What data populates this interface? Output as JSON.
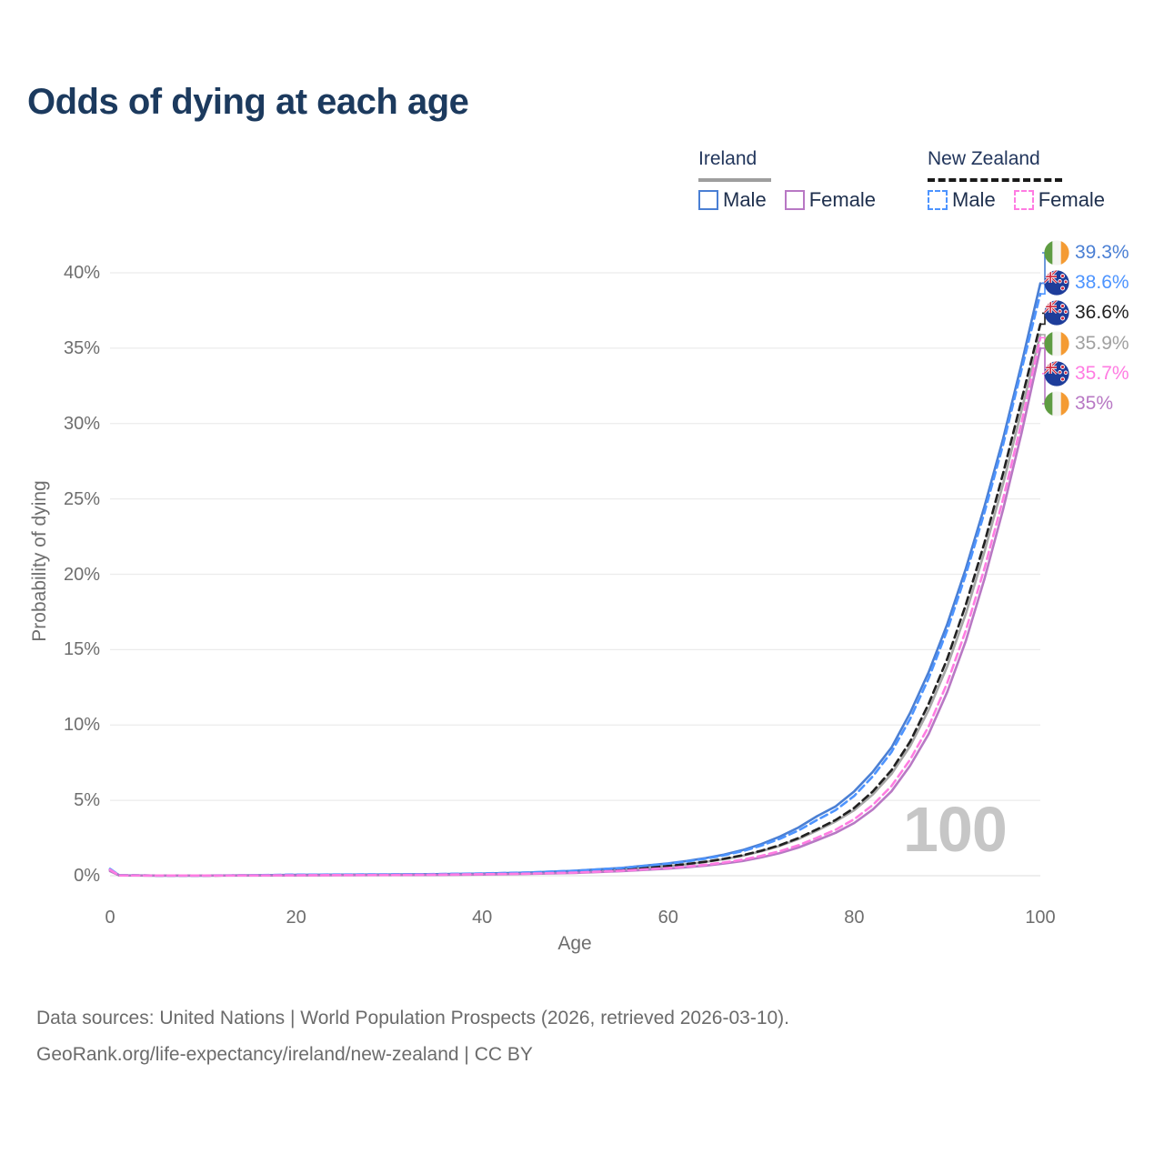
{
  "title": "Odds of dying at each age",
  "watermark": "100",
  "footer": {
    "line1": "Data sources: United Nations | World Population Prospects (2026, retrieved 2026-03-10).",
    "line2": "GeoRank.org/life-expectancy/ireland/new-zealand | CC BY"
  },
  "colors": {
    "title": "#1c3a5e",
    "axis_text": "#6e6e6e",
    "gridline": "#ececec",
    "watermark": "#c6c6c6",
    "ireland_male": "#4a7fd4",
    "ireland_female": "#b878c4",
    "ireland_all": "#a6a6a6",
    "new_zealand_male": "#4d94ff",
    "new_zealand_female": "#ff7ce2",
    "new_zealand_all": "#212121"
  },
  "legend": {
    "groups": [
      {
        "country": "Ireland",
        "slug": "ireland",
        "underline_style": "solid",
        "underline_color": "#9e9e9e",
        "underline_width": 80,
        "items": [
          {
            "label": "Male",
            "color": "#4a7fd4",
            "dashed": false
          },
          {
            "label": "Female",
            "color": "#b878c4",
            "dashed": false
          }
        ]
      },
      {
        "country": "New Zealand",
        "slug": "new-zealand",
        "underline_style": "dashed",
        "underline_color": "#1a1a1a",
        "underline_width": 148,
        "items": [
          {
            "label": "Male",
            "color": "#4d94ff",
            "dashed": true
          },
          {
            "label": "Female",
            "color": "#ff7ce2",
            "dashed": true
          }
        ]
      }
    ]
  },
  "chart_data": {
    "type": "line",
    "title": "Odds of dying at each age",
    "xlabel": "Age",
    "ylabel": "Probability of dying",
    "xlim": [
      0,
      100
    ],
    "ylim_percent": [
      0,
      40
    ],
    "grid": true,
    "legend_position": "top-right",
    "x_ticks": [
      {
        "value": 0,
        "label": "0"
      },
      {
        "value": 20,
        "label": "20"
      },
      {
        "value": 40,
        "label": "40"
      },
      {
        "value": 60,
        "label": "60"
      },
      {
        "value": 80,
        "label": "80"
      },
      {
        "value": 100,
        "label": "100"
      }
    ],
    "y_ticks": [
      {
        "value": 0,
        "label": "0%"
      },
      {
        "value": 5,
        "label": "5%"
      },
      {
        "value": 10,
        "label": "10%"
      },
      {
        "value": 15,
        "label": "15%"
      },
      {
        "value": 20,
        "label": "20%"
      },
      {
        "value": 25,
        "label": "25%"
      },
      {
        "value": 30,
        "label": "30%"
      },
      {
        "value": 35,
        "label": "35%"
      },
      {
        "value": 40,
        "label": "40%"
      }
    ],
    "ages": [
      0,
      1,
      5,
      10,
      15,
      20,
      25,
      30,
      35,
      40,
      45,
      50,
      55,
      60,
      62,
      64,
      66,
      68,
      70,
      72,
      74,
      76,
      78,
      80,
      82,
      84,
      86,
      88,
      90,
      92,
      94,
      96,
      98,
      100
    ],
    "series": [
      {
        "id": "ireland-all",
        "name": "Ireland",
        "flag": "ireland",
        "color": "#a6a6a6",
        "dashed": false,
        "end_label": "35.9%",
        "end_label_color": "#a0a0a0",
        "values_percent": [
          0.35,
          0.02,
          0.01,
          0.01,
          0.02,
          0.04,
          0.05,
          0.06,
          0.08,
          0.11,
          0.17,
          0.26,
          0.41,
          0.64,
          0.76,
          0.91,
          1.09,
          1.32,
          1.62,
          1.98,
          2.43,
          3.0,
          3.6,
          4.35,
          5.4,
          6.75,
          8.6,
          11.0,
          13.9,
          17.4,
          21.5,
          26.0,
          30.9,
          35.9
        ]
      },
      {
        "id": "new-zealand-all",
        "name": "New Zealand",
        "flag": "new-zealand",
        "color": "#212121",
        "dashed": true,
        "end_label": "36.6%",
        "end_label_color": "#212121",
        "values_percent": [
          0.4,
          0.03,
          0.01,
          0.01,
          0.02,
          0.05,
          0.06,
          0.07,
          0.09,
          0.12,
          0.18,
          0.27,
          0.42,
          0.65,
          0.78,
          0.93,
          1.12,
          1.36,
          1.66,
          2.03,
          2.5,
          3.08,
          3.7,
          4.5,
          5.6,
          7.0,
          8.9,
          11.4,
          14.4,
          18.0,
          22.1,
          26.7,
          31.6,
          36.6
        ]
      },
      {
        "id": "ireland-male",
        "name": "Ireland Male",
        "flag": "ireland",
        "color": "#4a7fd4",
        "dashed": false,
        "end_label": "39.3%",
        "end_label_color": "#4a7fd4",
        "values_percent": [
          0.4,
          0.03,
          0.01,
          0.01,
          0.03,
          0.06,
          0.07,
          0.08,
          0.1,
          0.14,
          0.21,
          0.33,
          0.52,
          0.82,
          0.98,
          1.17,
          1.4,
          1.7,
          2.1,
          2.6,
          3.2,
          3.95,
          4.6,
          5.6,
          6.9,
          8.5,
          10.8,
          13.5,
          16.7,
          20.4,
          24.5,
          29.0,
          34.0,
          39.3
        ]
      },
      {
        "id": "new-zealand-male",
        "name": "New Zealand Male",
        "flag": "new-zealand",
        "color": "#4d94ff",
        "dashed": true,
        "end_label": "38.6%",
        "end_label_color": "#4d94ff",
        "values_percent": [
          0.45,
          0.03,
          0.01,
          0.01,
          0.03,
          0.07,
          0.08,
          0.09,
          0.11,
          0.15,
          0.22,
          0.33,
          0.51,
          0.8,
          0.95,
          1.13,
          1.35,
          1.63,
          2.0,
          2.45,
          3.0,
          3.7,
          4.35,
          5.3,
          6.6,
          8.2,
          10.4,
          13.1,
          16.3,
          20.0,
          24.1,
          28.6,
          33.6,
          38.6
        ]
      },
      {
        "id": "ireland-female",
        "name": "Ireland Female",
        "flag": "ireland",
        "color": "#b878c4",
        "dashed": false,
        "end_label": "35%",
        "end_label_color": "#b878c4",
        "values_percent": [
          0.3,
          0.02,
          0.01,
          0.01,
          0.01,
          0.02,
          0.03,
          0.04,
          0.05,
          0.08,
          0.12,
          0.19,
          0.3,
          0.47,
          0.56,
          0.67,
          0.81,
          0.98,
          1.21,
          1.5,
          1.87,
          2.35,
          2.85,
          3.5,
          4.4,
          5.6,
          7.3,
          9.4,
          12.2,
          15.6,
          19.7,
          24.3,
          29.4,
          35.0
        ]
      },
      {
        "id": "new-zealand-female",
        "name": "New Zealand Female",
        "flag": "new-zealand",
        "color": "#ff7ce2",
        "dashed": true,
        "end_label": "35.7%",
        "end_label_color": "#ff7ce2",
        "values_percent": [
          0.4,
          0.02,
          0.01,
          0.01,
          0.02,
          0.03,
          0.04,
          0.05,
          0.07,
          0.1,
          0.14,
          0.21,
          0.33,
          0.51,
          0.61,
          0.73,
          0.88,
          1.07,
          1.32,
          1.63,
          2.02,
          2.52,
          3.05,
          3.75,
          4.7,
          5.95,
          7.7,
          9.9,
          12.8,
          16.3,
          20.4,
          25.0,
          30.1,
          35.7
        ]
      }
    ]
  }
}
